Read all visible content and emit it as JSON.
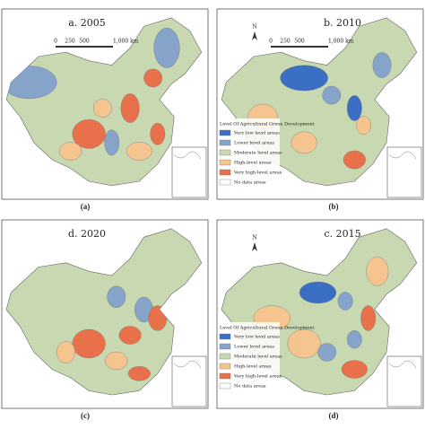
{
  "panels": [
    {
      "title": "a. 2005",
      "panel_label": "(a)",
      "scale": [
        "0",
        "250",
        "500",
        "1,000 km"
      ]
    },
    {
      "title": "b. 2010",
      "panel_label": "(b)",
      "north": "N",
      "scale": [
        "0",
        "250",
        "500",
        "1,000 km"
      ],
      "legend_title": "Level Of Agricultural Green Development",
      "legend": [
        "Very low level areas",
        "Lower level areas",
        "Moderate level areas",
        "High-level areas",
        "Very high-level areas",
        "No data areas"
      ]
    },
    {
      "title": "d. 2020",
      "panel_label": "(c)"
    },
    {
      "title": "c. 2015",
      "panel_label": "(d)",
      "north": "N",
      "legend_title": "Level Of Agricultural Green Development",
      "legend": [
        "Very low level areas",
        "Lower level areas",
        "Moderate level areas",
        "High-level areas",
        "Very high-level areas",
        "No data areas"
      ]
    }
  ]
}
